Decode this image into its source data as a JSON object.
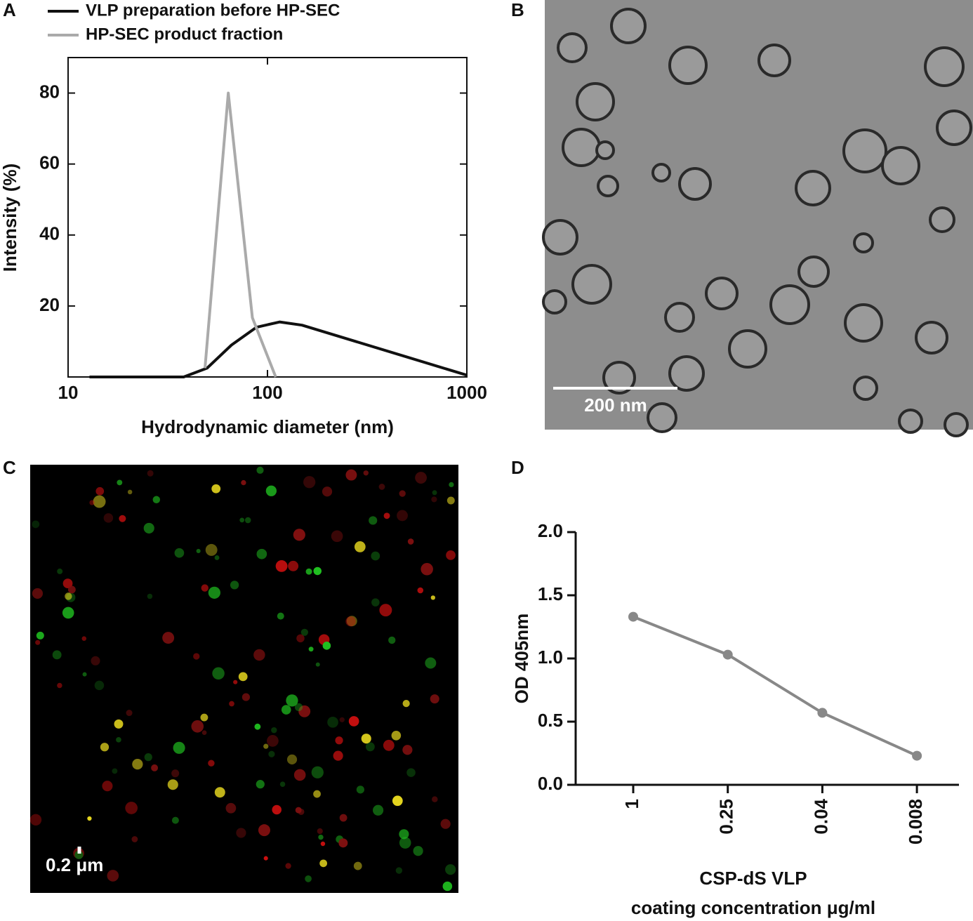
{
  "panel_labels": [
    "A",
    "B",
    "C",
    "D"
  ],
  "micrographs": [
    {
      "scale_bar": "200 nm"
    },
    {
      "scale_bar": "0.2 μm"
    }
  ],
  "chart_data": [
    {
      "type": "line",
      "xlog": true,
      "xlabel": "Hydrodynamic diameter (nm)",
      "ylabel": "Intensity (%)",
      "xlim": [
        10,
        1000
      ],
      "xticks": [
        10,
        100,
        1000
      ],
      "ylim": [
        0,
        90
      ],
      "yticks": [
        20,
        40,
        60,
        80
      ],
      "series": [
        {
          "name": "VLP preparation before HP-SEC",
          "color": "#111111",
          "x": [
            12.8,
            38,
            49.8,
            66,
            88,
            115,
            149,
            1000
          ],
          "values": [
            0,
            0,
            2.5,
            9,
            14,
            15.5,
            14.6,
            0.5
          ]
        },
        {
          "name": "HP-SEC product fraction",
          "color": "#aaaaaa",
          "x": [
            48.6,
            63.6,
            84,
            110
          ],
          "values": [
            2.5,
            80,
            16.7,
            0
          ]
        }
      ]
    },
    {
      "type": "line",
      "xlabel": [
        "CSP-dS VLP",
        "coating concentration μg/ml"
      ],
      "ylabel": "OD 405nm",
      "categories": [
        "1",
        "0.25",
        "0.04",
        "0.008"
      ],
      "series": [
        {
          "color": "#888888",
          "values": [
            1.33,
            1.03,
            0.57,
            0.23
          ]
        }
      ],
      "ylim": [
        0,
        2
      ],
      "yticks": [
        {
          "value": 0,
          "label": "0.0"
        },
        0.5,
        {
          "value": 1,
          "label": "1.0"
        },
        1.5,
        {
          "value": 2,
          "label": "2.0"
        }
      ]
    }
  ]
}
